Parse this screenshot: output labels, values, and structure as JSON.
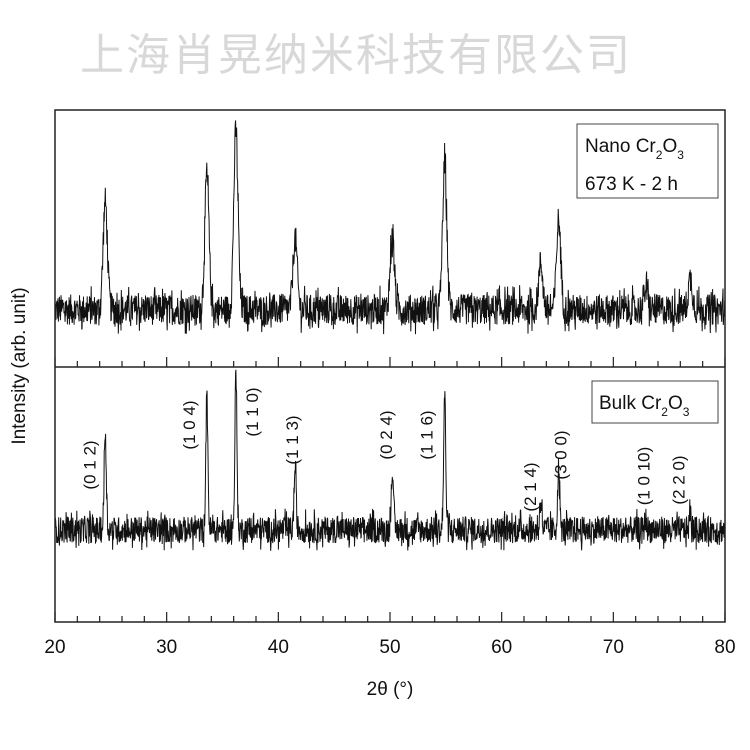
{
  "chart_data": {
    "type": "line",
    "title": "",
    "xlabel": "2θ (°)",
    "xlabel_main": "2",
    "xlabel_theta": "θ",
    "xlabel_unit": "(°)",
    "ylabel": "Intensity (arb. unit)",
    "xlim": [
      20,
      80
    ],
    "ylim": [
      0,
      100
    ],
    "x_ticks": [
      20,
      30,
      40,
      50,
      60,
      70,
      80
    ],
    "x_minor_step": 2,
    "y_ticks_shown": false,
    "grid": false,
    "series": [
      {
        "name": "Nano Cr2O3",
        "legend_line1_prefix": "Nano Cr",
        "legend_sub1": "2",
        "legend_mid": "O",
        "legend_sub2": "3",
        "legend_line2": "673 K - 2 h",
        "baseline": 61,
        "noise": 3,
        "peak_fwhm": 0.45,
        "peaks": [
          {
            "x": 24.5,
            "y": 82
          },
          {
            "x": 33.6,
            "y": 87
          },
          {
            "x": 36.2,
            "y": 96
          },
          {
            "x": 41.5,
            "y": 75
          },
          {
            "x": 50.2,
            "y": 75
          },
          {
            "x": 54.9,
            "y": 89
          },
          {
            "x": 63.5,
            "y": 70
          },
          {
            "x": 65.1,
            "y": 78.5
          },
          {
            "x": 72.9,
            "y": 65
          },
          {
            "x": 76.9,
            "y": 67
          }
        ]
      },
      {
        "name": "Bulk Cr2O3",
        "legend_line1_prefix": "Bulk Cr",
        "legend_sub1": "2",
        "legend_mid": "O",
        "legend_sub2": "3",
        "baseline": 18,
        "noise": 2.6,
        "peak_fwhm": 0.22,
        "peaks": [
          {
            "x": 24.5,
            "y": 37.5
          },
          {
            "x": 33.6,
            "y": 44
          },
          {
            "x": 36.2,
            "y": 48
          },
          {
            "x": 41.5,
            "y": 30
          },
          {
            "x": 50.2,
            "y": 30
          },
          {
            "x": 54.9,
            "y": 44
          },
          {
            "x": 63.5,
            "y": 24
          },
          {
            "x": 65.1,
            "y": 30
          },
          {
            "x": 72.9,
            "y": 20
          },
          {
            "x": 76.9,
            "y": 21
          }
        ]
      }
    ],
    "annotations": [
      {
        "text": "(0 1 2)",
        "x": 24.5
      },
      {
        "text": "(1 0 4)",
        "x": 33.6
      },
      {
        "text": "(1 1 0)",
        "x": 36.2
      },
      {
        "text": "(1 1 3)",
        "x": 41.5
      },
      {
        "text": "(0 2 4)",
        "x": 50.2
      },
      {
        "text": "(1 1 6)",
        "x": 54.9
      },
      {
        "text": "(2 1 4)",
        "x": 63.5
      },
      {
        "text": "(3 0 0)",
        "x": 65.1
      },
      {
        "text": "(1 0 10)",
        "x": 72.9
      },
      {
        "text": "(2 2 0)",
        "x": 76.9
      }
    ],
    "watermark": "上海肖晃纳米科技有限公司"
  }
}
